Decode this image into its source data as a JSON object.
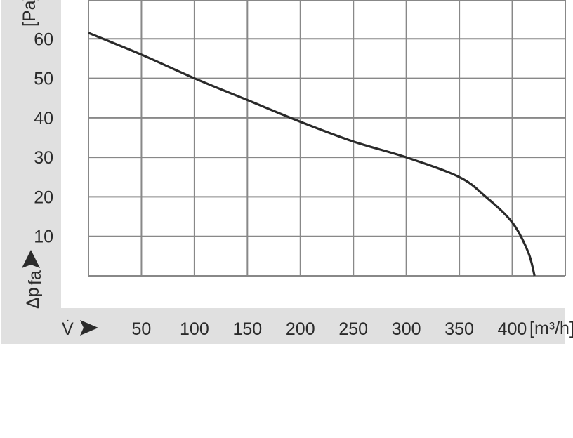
{
  "chart_data": {
    "type": "line",
    "title": "",
    "xlabel": "V̇",
    "xunit": "[m³/h]",
    "ylabel": "Δp",
    "ylabel_sub": "fa",
    "yunit": "[Pa]",
    "xlim": [
      0,
      450
    ],
    "ylim": [
      0,
      70
    ],
    "grid": true,
    "x_ticks": [
      50,
      100,
      150,
      200,
      250,
      300,
      350,
      400
    ],
    "y_ticks": [
      10,
      20,
      30,
      40,
      50,
      60
    ],
    "series": [
      {
        "x": [
          0,
          50,
          100,
          150,
          200,
          250,
          300,
          350,
          375,
          400,
          415,
          421
        ],
        "y": [
          61.5,
          56,
          50,
          44.5,
          39,
          34,
          30,
          25,
          20,
          13.5,
          6,
          0
        ]
      }
    ],
    "colors": {
      "line": "#2a2a2a",
      "grid": "#888888",
      "panel": "#e0e0e0",
      "text": "#2b2b2b"
    }
  }
}
